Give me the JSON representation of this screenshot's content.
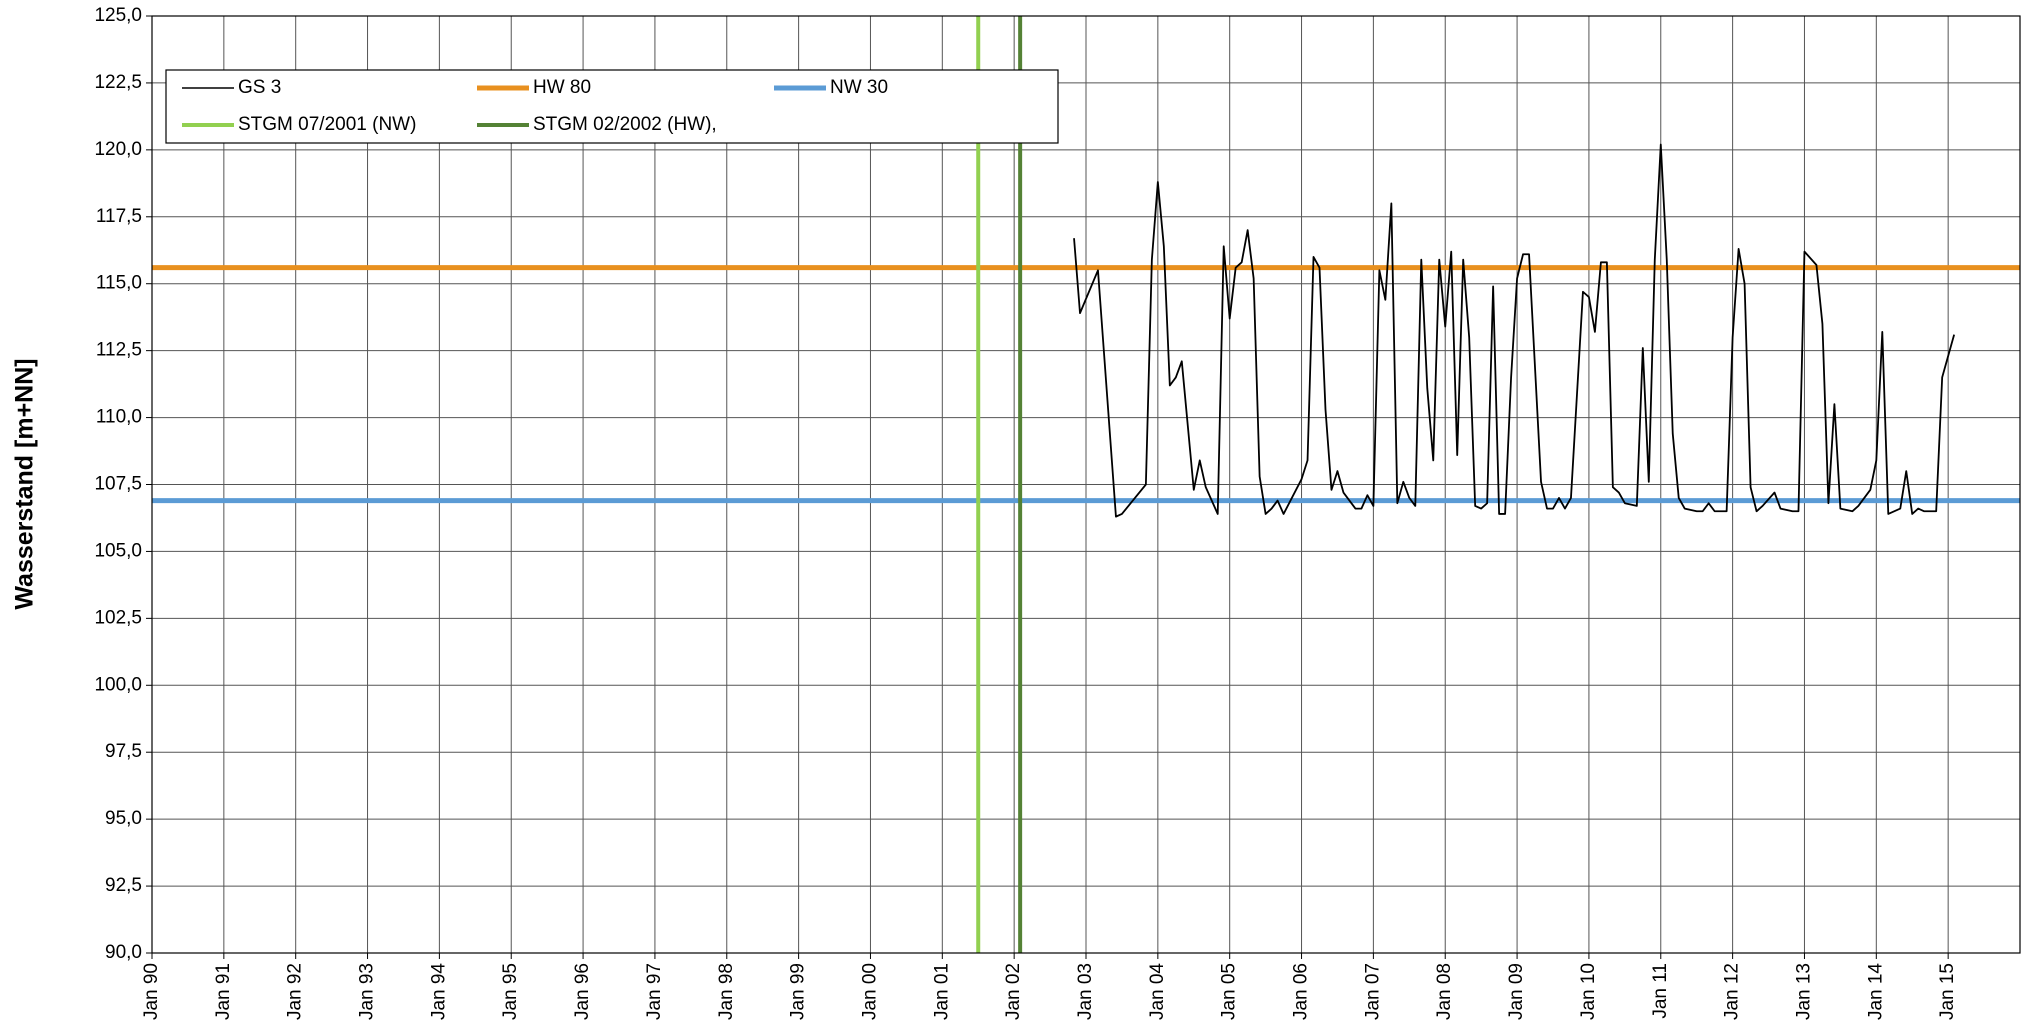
{
  "chart_data": {
    "type": "line",
    "y_label": "Wasserstand [m+NN]",
    "xlim": [
      "1990-01",
      "2016-01"
    ],
    "ylim": [
      90,
      125
    ],
    "grid": true,
    "legend": "top-left",
    "xticks": [
      {
        "value": "1990-01",
        "label": "Jan 90"
      },
      {
        "value": "1991-01",
        "label": "Jan 91"
      },
      {
        "value": "1992-01",
        "label": "Jan 92"
      },
      {
        "value": "1993-01",
        "label": "Jan 93"
      },
      {
        "value": "1994-01",
        "label": "Jan 94"
      },
      {
        "value": "1995-01",
        "label": "Jan 95"
      },
      {
        "value": "1996-01",
        "label": "Jan 96"
      },
      {
        "value": "1997-01",
        "label": "Jan 97"
      },
      {
        "value": "1998-01",
        "label": "Jan 98"
      },
      {
        "value": "1999-01",
        "label": "Jan 99"
      },
      {
        "value": "2000-01",
        "label": "Jan 00"
      },
      {
        "value": "2001-01",
        "label": "Jan 01"
      },
      {
        "value": "2002-01",
        "label": "Jan 02"
      },
      {
        "value": "2003-01",
        "label": "Jan 03"
      },
      {
        "value": "2004-01",
        "label": "Jan 04"
      },
      {
        "value": "2005-01",
        "label": "Jan 05"
      },
      {
        "value": "2006-01",
        "label": "Jan 06"
      },
      {
        "value": "2007-01",
        "label": "Jan 07"
      },
      {
        "value": "2008-01",
        "label": "Jan 08"
      },
      {
        "value": "2009-01",
        "label": "Jan 09"
      },
      {
        "value": "2010-01",
        "label": "Jan 10"
      },
      {
        "value": "2011-01",
        "label": "Jan 11"
      },
      {
        "value": "2012-01",
        "label": "Jan 12"
      },
      {
        "value": "2013-01",
        "label": "Jan 13"
      },
      {
        "value": "2014-01",
        "label": "Jan 14"
      },
      {
        "value": "2015-01",
        "label": "Jan 15"
      }
    ],
    "yticks": [
      {
        "value": 90,
        "label": "90,0"
      },
      {
        "value": 92.5,
        "label": "92,5"
      },
      {
        "value": 95,
        "label": "95,0"
      },
      {
        "value": 97.5,
        "label": "97,5"
      },
      {
        "value": 100,
        "label": "100,0"
      },
      {
        "value": 102.5,
        "label": "102,5"
      },
      {
        "value": 105,
        "label": "105,0"
      },
      {
        "value": 107.5,
        "label": "107,5"
      },
      {
        "value": 110,
        "label": "110,0"
      },
      {
        "value": 112.5,
        "label": "112,5"
      },
      {
        "value": 115,
        "label": "115,0"
      },
      {
        "value": 117.5,
        "label": "117,5"
      },
      {
        "value": 120,
        "label": "120,0"
      },
      {
        "value": 122.5,
        "label": "122,5"
      },
      {
        "value": 125,
        "label": "125,0"
      }
    ],
    "series": [
      {
        "name": "GS 3",
        "color": "#000000",
        "x": [
          "2002-11",
          "2002-12",
          "2003-03",
          "2003-06",
          "2003-07",
          "2003-11",
          "2003-12",
          "2004-01",
          "2004-02",
          "2004-03",
          "2004-04",
          "2004-05",
          "2004-07",
          "2004-08",
          "2004-09",
          "2004-11",
          "2004-12",
          "2005-01",
          "2005-02",
          "2005-03",
          "2005-04",
          "2005-05",
          "2005-06",
          "2005-07",
          "2005-08",
          "2005-09",
          "2005-10",
          "2006-01",
          "2006-02",
          "2006-03",
          "2006-04",
          "2006-05",
          "2006-06",
          "2006-07",
          "2006-08",
          "2006-10",
          "2006-11",
          "2006-12",
          "2007-01",
          "2007-02",
          "2007-03",
          "2007-04",
          "2007-05",
          "2007-06",
          "2007-07",
          "2007-08",
          "2007-09",
          "2007-10",
          "2007-11",
          "2007-12",
          "2008-01",
          "2008-02",
          "2008-03",
          "2008-04",
          "2008-05",
          "2008-06",
          "2008-07",
          "2008-08",
          "2008-09",
          "2008-10",
          "2008-11",
          "2008-12",
          "2009-01",
          "2009-02",
          "2009-03",
          "2009-05",
          "2009-06",
          "2009-07",
          "2009-08",
          "2009-09",
          "2009-10",
          "2009-12",
          "2010-01",
          "2010-02",
          "2010-03",
          "2010-04",
          "2010-05",
          "2010-06",
          "2010-07",
          "2010-09",
          "2010-10",
          "2010-11",
          "2010-12",
          "2011-01",
          "2011-02",
          "2011-03",
          "2011-04",
          "2011-05",
          "2011-07",
          "2011-08",
          "2011-09",
          "2011-10",
          "2011-12",
          "2012-01",
          "2012-02",
          "2012-03",
          "2012-04",
          "2012-05",
          "2012-06",
          "2012-08",
          "2012-09",
          "2012-11",
          "2012-12",
          "2013-01",
          "2013-03",
          "2013-04",
          "2013-05",
          "2013-06",
          "2013-07",
          "2013-09",
          "2013-10",
          "2013-12",
          "2014-01",
          "2014-02",
          "2014-03",
          "2014-05",
          "2014-06",
          "2014-07",
          "2014-08",
          "2014-09",
          "2014-11",
          "2014-12",
          "2015-02"
        ],
        "values": [
          116.7,
          113.9,
          115.5,
          106.3,
          106.4,
          107.5,
          115.9,
          118.8,
          116.4,
          111.2,
          111.5,
          112.1,
          107.3,
          108.4,
          107.4,
          106.4,
          116.4,
          113.7,
          115.6,
          115.8,
          117.0,
          115.2,
          107.8,
          106.4,
          106.6,
          106.9,
          106.4,
          107.7,
          108.4,
          116.0,
          115.6,
          110.3,
          107.3,
          108.0,
          107.2,
          106.6,
          106.6,
          107.1,
          106.7,
          115.5,
          114.4,
          118.0,
          106.8,
          107.6,
          107.0,
          106.7,
          115.9,
          111.1,
          108.4,
          115.9,
          113.4,
          116.2,
          108.6,
          115.9,
          113.0,
          106.7,
          106.6,
          106.8,
          114.9,
          106.4,
          106.4,
          111.5,
          115.2,
          116.1,
          116.1,
          107.6,
          106.6,
          106.6,
          107.0,
          106.6,
          107.0,
          114.7,
          114.5,
          113.2,
          115.8,
          115.8,
          107.4,
          107.2,
          106.8,
          106.7,
          112.6,
          107.6,
          115.9,
          120.2,
          115.9,
          109.4,
          107.0,
          106.6,
          106.5,
          106.5,
          106.8,
          106.5,
          106.5,
          113.0,
          116.3,
          115.0,
          107.4,
          106.5,
          106.7,
          107.2,
          106.6,
          106.5,
          106.5,
          116.2,
          115.7,
          113.5,
          106.8,
          110.5,
          106.6,
          106.5,
          106.7,
          107.3,
          108.4,
          113.2,
          106.4,
          106.6,
          108.0,
          106.4,
          106.6,
          106.5,
          106.5,
          111.5,
          113.1
        ]
      }
    ],
    "hlines": [
      {
        "name": "HW 80",
        "color": "#e8901f",
        "value": 115.6
      },
      {
        "name": "NW 30",
        "color": "#5b9bd5",
        "value": 106.9
      }
    ],
    "vlines": [
      {
        "name": "STGM 07/2001 (NW)",
        "color": "#92d050",
        "x": "2001-07"
      },
      {
        "name": "STGM 02/2002 (HW),",
        "color": "#548235",
        "x": "2002-02"
      }
    ]
  }
}
